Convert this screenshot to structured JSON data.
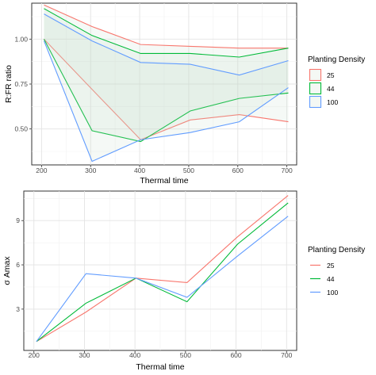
{
  "chart_data": [
    {
      "type": "line",
      "style": "ribbon",
      "xlabel": "Thermal time",
      "ylabel": "R:FR ratio",
      "x_ticks": [
        200,
        300,
        400,
        500,
        600,
        700
      ],
      "y_ticks": [
        0.5,
        0.75,
        1.0
      ],
      "y_tick_labels": [
        "0.50",
        "0.75",
        "1.00"
      ],
      "xlim": [
        180,
        720
      ],
      "ylim": [
        0.3,
        1.2
      ],
      "grid": true,
      "legend": {
        "title": "Planting Density",
        "placement": "right"
      },
      "x": [
        205,
        303,
        402,
        503,
        603,
        703
      ],
      "series": [
        {
          "name": "25",
          "color": "#F8766D",
          "upper": [
            1.19,
            1.07,
            0.97,
            0.96,
            0.95,
            0.95
          ],
          "lower": [
            1.0,
            0.72,
            0.44,
            0.55,
            0.58,
            0.54
          ]
        },
        {
          "name": "44",
          "color": "#00BA38",
          "upper": [
            1.17,
            1.02,
            0.92,
            0.92,
            0.9,
            0.95
          ],
          "lower": [
            1.0,
            0.49,
            0.43,
            0.6,
            0.67,
            0.7
          ]
        },
        {
          "name": "100",
          "color": "#619CFF",
          "upper": [
            1.14,
            0.99,
            0.87,
            0.86,
            0.8,
            0.88
          ],
          "lower": [
            0.99,
            0.32,
            0.44,
            0.48,
            0.54,
            0.73
          ]
        }
      ]
    },
    {
      "type": "line",
      "xlabel": "Thermal time",
      "ylabel": "σ Amax",
      "x_ticks": [
        200,
        300,
        400,
        500,
        600,
        700
      ],
      "y_ticks": [
        3,
        6,
        9
      ],
      "y_tick_labels": [
        "3",
        "6",
        "9"
      ],
      "xlim": [
        180,
        720
      ],
      "ylim": [
        0.2,
        11.0
      ],
      "grid": true,
      "legend": {
        "title": "Planting Density",
        "placement": "right"
      },
      "x": [
        205,
        303,
        402,
        503,
        603,
        703
      ],
      "series": [
        {
          "name": "25",
          "color": "#F8766D",
          "values": [
            0.8,
            2.8,
            5.1,
            4.8,
            7.9,
            10.7
          ]
        },
        {
          "name": "44",
          "color": "#00BA38",
          "values": [
            0.8,
            3.4,
            5.1,
            3.5,
            7.4,
            10.2
          ]
        },
        {
          "name": "100",
          "color": "#619CFF",
          "values": [
            0.8,
            5.4,
            5.1,
            3.8,
            6.6,
            9.3
          ]
        }
      ]
    }
  ]
}
